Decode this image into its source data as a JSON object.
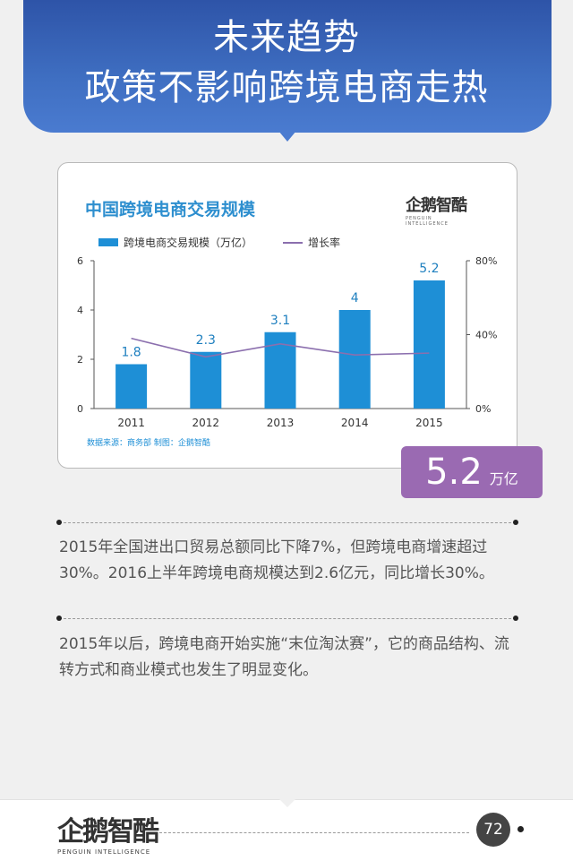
{
  "header": {
    "line1": "未来趋势",
    "line2": "政策不影响跨境电商走热"
  },
  "chart_logo": {
    "text": "企鹅智酷",
    "sub": "PENGUIN INTELLIGENCE"
  },
  "highlight": {
    "value": "5.2",
    "unit": "万亿"
  },
  "paragraphs": [
    "2015年全国进出口贸易总额同比下降7%，但跨境电商增速超过30%。2016上半年跨境电商规模达到2.6亿元，同比增长30%。",
    "2015年以后，跨境电商开始实施“末位淘汰赛”，它的商品结构、流转方式和商业模式也发生了明显变化。"
  ],
  "footer": {
    "logo_text": "企鹅智酷",
    "logo_sub": "PENGUIN INTELLIGENCE",
    "page_number": "72"
  },
  "colors": {
    "bar": "#1e8fd6",
    "line": "#8b6fae",
    "banner": "#3a63b8",
    "highlight": "#9a6ab2"
  },
  "chart_data": {
    "type": "bar",
    "title": "中国跨境电商交易规模",
    "categories": [
      "2011",
      "2012",
      "2013",
      "2014",
      "2015"
    ],
    "series": [
      {
        "name": "跨境电商交易规模（万亿）",
        "type": "bar",
        "axis": "left",
        "values": [
          1.8,
          2.3,
          3.1,
          4,
          5.2
        ],
        "labels": [
          "1.8",
          "2.3",
          "3.1",
          "4",
          "5.2"
        ]
      },
      {
        "name": "增长率",
        "type": "line",
        "axis": "right",
        "values": [
          0.38,
          0.28,
          0.35,
          0.29,
          0.3
        ]
      }
    ],
    "ylim": [
      0,
      6
    ],
    "yticks": [
      "0",
      "2",
      "4",
      "6"
    ],
    "y2lim": [
      0,
      0.8
    ],
    "y2ticks": [
      "0%",
      "40%",
      "80%"
    ],
    "legend": "top-left",
    "grid": false,
    "source_note": "数据来源：商务部 制图：企鹅智酷"
  }
}
